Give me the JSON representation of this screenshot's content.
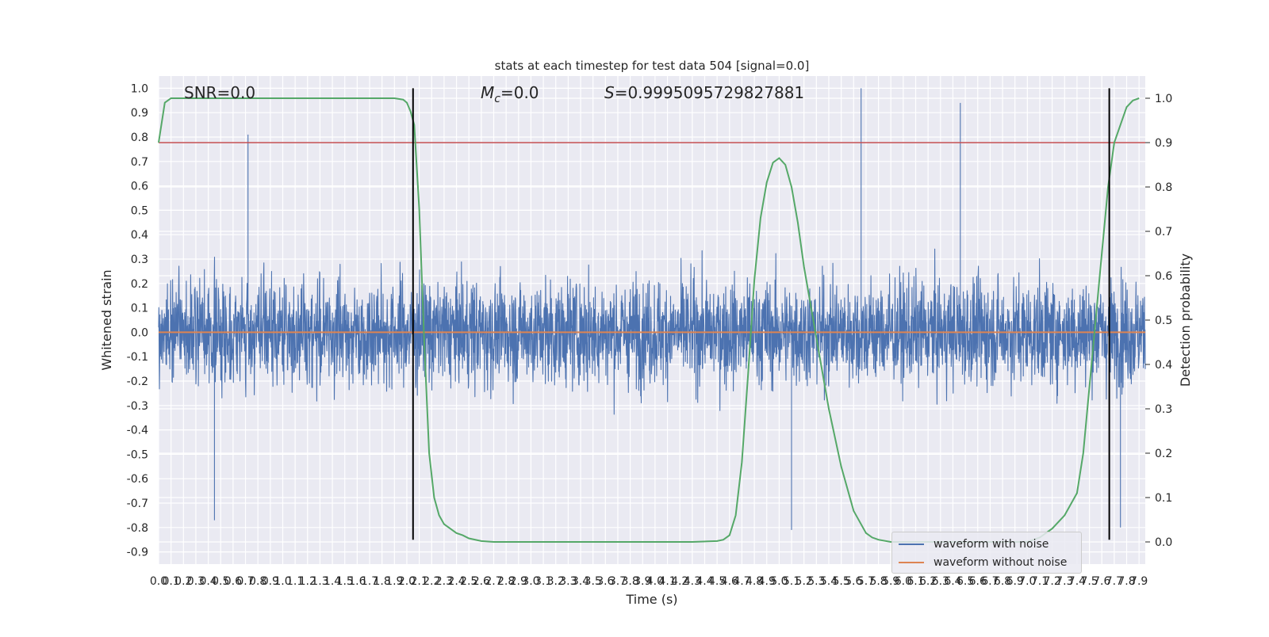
{
  "chart_data": {
    "type": "line",
    "title": "stats at each timestep for test data 504 [signal=0.0]",
    "xlabel": "Time (s)",
    "ylabel_left": "Whitened strain",
    "ylabel_right": "Detection probability",
    "xlim": [
      0.0,
      7.95
    ],
    "ylim_left": [
      -0.95,
      1.05
    ],
    "ylim_right": [
      -0.05,
      1.05
    ],
    "x_ticks": [
      0.0,
      0.1,
      0.2,
      0.3,
      0.4,
      0.5,
      0.6,
      0.7,
      0.8,
      0.9,
      1.0,
      1.1,
      1.2,
      1.3,
      1.4,
      1.5,
      1.6,
      1.7,
      1.8,
      1.9,
      2.0,
      2.1,
      2.2,
      2.3,
      2.4,
      2.5,
      2.6,
      2.7,
      2.8,
      2.9,
      3.0,
      3.1,
      3.2,
      3.3,
      3.4,
      3.5,
      3.6,
      3.7,
      3.8,
      3.9,
      4.0,
      4.1,
      4.2,
      4.3,
      4.4,
      4.5,
      4.6,
      4.7,
      4.8,
      4.9,
      5.0,
      5.1,
      5.2,
      5.3,
      5.4,
      5.5,
      5.6,
      5.7,
      5.8,
      5.9,
      6.0,
      6.1,
      6.2,
      6.3,
      6.4,
      6.5,
      6.6,
      6.7,
      6.8,
      6.9,
      7.0,
      7.1,
      7.2,
      7.3,
      7.4,
      7.5,
      7.6,
      7.7,
      7.8,
      7.9
    ],
    "y_ticks_left": [
      1.0,
      0.9,
      0.8,
      0.7,
      0.6,
      0.5,
      0.4,
      0.3,
      0.2,
      0.1,
      0.0,
      -0.1,
      -0.2,
      -0.3,
      -0.4,
      -0.5,
      -0.6,
      -0.7,
      -0.8,
      -0.9
    ],
    "y_ticks_right": [
      1.0,
      0.9,
      0.8,
      0.7,
      0.6,
      0.5,
      0.4,
      0.3,
      0.2,
      0.1,
      0.0
    ],
    "annotations": {
      "snr": "SNR=0.0",
      "mc_symbol": "M",
      "mc_sub": "c",
      "mc_value": "=0.0",
      "s_symbol": "S",
      "s_value": "=0.9995095729827881"
    },
    "series": [
      {
        "name": "waveform with noise",
        "color": "#4c72b0",
        "axis": "left",
        "kind": "noise_trace",
        "typical_range": [
          -0.5,
          0.5
        ],
        "peaks": [
          [
            0.72,
            0.81
          ],
          [
            5.66,
            1.0
          ],
          [
            6.46,
            0.94
          ],
          [
            0.45,
            -0.77
          ],
          [
            5.1,
            -0.81
          ],
          [
            7.75,
            -0.8
          ]
        ]
      },
      {
        "name": "waveform without noise",
        "color": "#dd8452",
        "axis": "left",
        "x": [
          0.0,
          7.95
        ],
        "y": [
          0.0,
          0.0
        ]
      },
      {
        "axis": "right",
        "color": "#55a868",
        "x": [
          0.0,
          0.05,
          0.1,
          0.2,
          0.5,
          1.0,
          1.5,
          1.8,
          1.9,
          1.97,
          2.0,
          2.03,
          2.06,
          2.1,
          2.14,
          2.18,
          2.22,
          2.26,
          2.3,
          2.35,
          2.4,
          2.45,
          2.5,
          2.6,
          2.7,
          2.8,
          2.9,
          3.0,
          3.5,
          4.0,
          4.3,
          4.5,
          4.55,
          4.6,
          4.65,
          4.7,
          4.75,
          4.8,
          4.85,
          4.9,
          4.95,
          5.0,
          5.05,
          5.1,
          5.15,
          5.2,
          5.3,
          5.4,
          5.5,
          5.6,
          5.7,
          5.75,
          5.8,
          5.9,
          6.0,
          6.2,
          6.4,
          6.6,
          6.8,
          7.0,
          7.1,
          7.2,
          7.3,
          7.4,
          7.45,
          7.5,
          7.6,
          7.65,
          7.7,
          7.75,
          7.8,
          7.85,
          7.9
        ],
        "y": [
          0.9,
          0.99,
          1.0,
          1.0,
          1.0,
          1.0,
          1.0,
          1.0,
          1.0,
          0.997,
          0.99,
          0.97,
          0.94,
          0.75,
          0.45,
          0.2,
          0.1,
          0.06,
          0.04,
          0.03,
          0.02,
          0.015,
          0.008,
          0.002,
          0.0,
          0.0,
          0.0,
          0.0,
          0.0,
          0.0,
          0.0,
          0.002,
          0.005,
          0.015,
          0.06,
          0.18,
          0.38,
          0.59,
          0.73,
          0.81,
          0.855,
          0.865,
          0.85,
          0.8,
          0.72,
          0.62,
          0.46,
          0.3,
          0.17,
          0.07,
          0.02,
          0.01,
          0.005,
          0.0,
          0.0,
          0.0,
          0.0,
          0.0,
          0.0,
          0.0,
          0.01,
          0.03,
          0.06,
          0.11,
          0.2,
          0.35,
          0.65,
          0.8,
          0.9,
          0.94,
          0.98,
          0.995,
          1.0
        ]
      },
      {
        "axis": "right",
        "color": "#c44e52",
        "kind": "threshold",
        "y": 0.9
      },
      {
        "axis": "left",
        "color": "#000000",
        "kind": "vline",
        "x": [
          2.05,
          7.66
        ],
        "y_range": [
          -0.85,
          1.0
        ]
      }
    ],
    "legend": {
      "position": "lower right",
      "entries": [
        "waveform with noise",
        "waveform without noise"
      ]
    },
    "grid": true,
    "background": "#eaeaf2"
  }
}
